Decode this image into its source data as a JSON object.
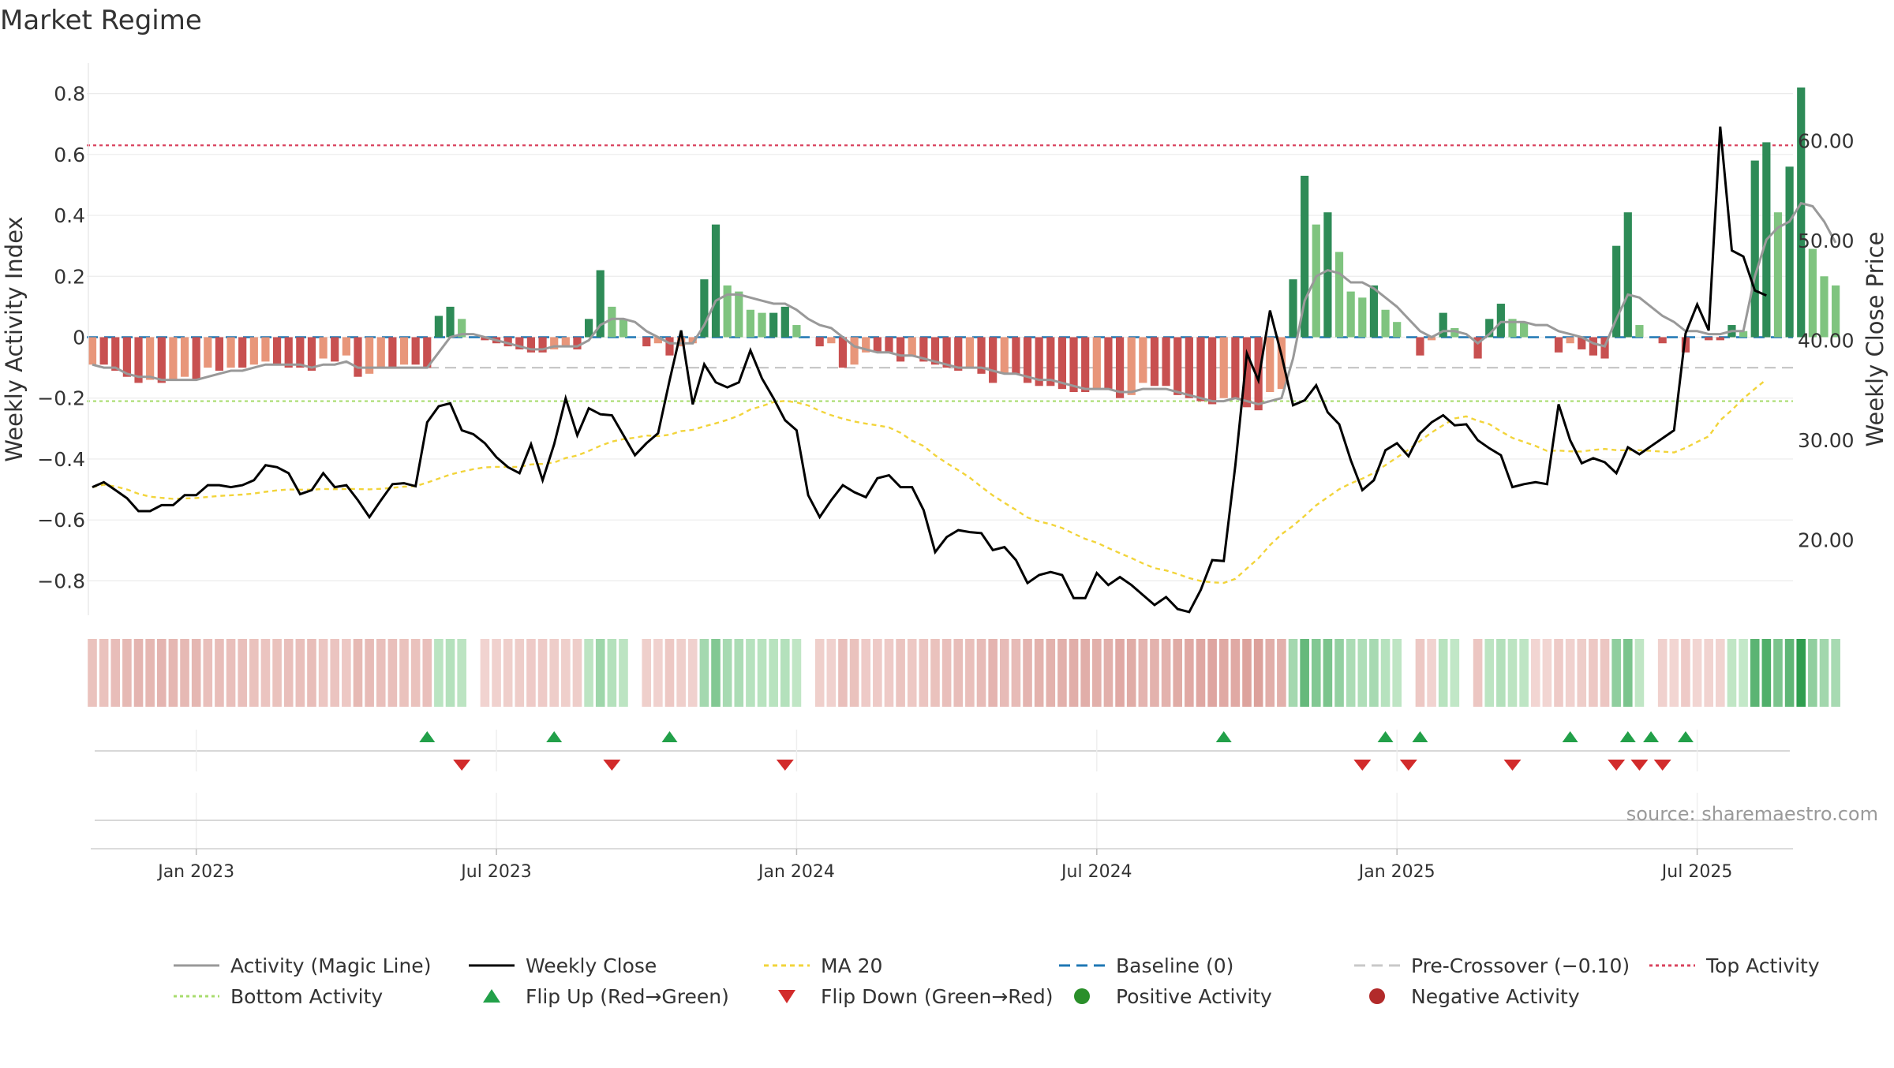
{
  "title": "Market Regime",
  "source_text": "source: sharemaestro.com",
  "colors": {
    "strong_green": "#2e8b57",
    "light_green": "#7fc47f",
    "strong_red": "#c85050",
    "light_red": "#e8967a",
    "magic_line": "#999999",
    "close": "#000000",
    "ma20": "#f2d43a",
    "baseline": "#1f77b4",
    "precross": "#c8c8c8",
    "top": "#d9435e",
    "bottom": "#a8dc6e",
    "flip_up": "#22a049",
    "flip_down": "#d22b2b"
  },
  "legend": [
    {
      "label": "Activity (Magic Line)",
      "kind": "line",
      "color": "#999999",
      "dash": ""
    },
    {
      "label": "Weekly Close",
      "kind": "line",
      "color": "#000000",
      "dash": ""
    },
    {
      "label": "MA 20",
      "kind": "line",
      "color": "#f2d43a",
      "dash": "6,5"
    },
    {
      "label": "Baseline (0)",
      "kind": "line",
      "color": "#1f77b4",
      "dash": "14,8"
    },
    {
      "label": "Pre-Crossover (−0.10)",
      "kind": "line",
      "color": "#c8c8c8",
      "dash": "14,8"
    },
    {
      "label": "Top Activity",
      "kind": "line",
      "color": "#d9435e",
      "dash": "4,4"
    },
    {
      "label": "Bottom Activity",
      "kind": "line",
      "color": "#a8dc6e",
      "dash": "4,4"
    },
    {
      "label": "Flip Up (Red→Green)",
      "kind": "tri-up",
      "color": "#22a049",
      "dash": ""
    },
    {
      "label": "Flip Down (Green→Red)",
      "kind": "tri-down",
      "color": "#d22b2b",
      "dash": ""
    },
    {
      "label": "Positive Activity",
      "kind": "dot",
      "color": "#2a8f2a",
      "dash": ""
    },
    {
      "label": "Negative Activity",
      "kind": "dot",
      "color": "#b22a2a",
      "dash": ""
    }
  ],
  "chart_data": {
    "type": "bar",
    "x_ticks": [
      "Jan 2023",
      "Jul 2023",
      "Jan 2024",
      "Jul 2024",
      "Jan 2025",
      "Jul 2025"
    ],
    "x_tick_weeks": [
      9,
      35,
      61,
      87,
      113,
      139
    ],
    "first_week": "2022-11-07",
    "y_left": {
      "label": "Weekly Activity Index",
      "ticks": [
        "0.8",
        "0.6",
        "0.4",
        "0.2",
        "0",
        "−0.2",
        "−0.4",
        "−0.6",
        "−0.8"
      ],
      "range": [
        -0.9,
        0.9
      ]
    },
    "y_right": {
      "label": "Weekly Close Price",
      "ticks": [
        "60.00",
        "50.00",
        "40.00",
        "30.00",
        "20.00"
      ],
      "range": [
        12.87,
        67.77
      ]
    },
    "reference_lines": {
      "top": 0.63,
      "bottom": -0.21,
      "precross": -0.1,
      "baseline": 0
    },
    "activity": [
      -0.09,
      -0.09,
      -0.11,
      -0.13,
      -0.15,
      -0.14,
      -0.15,
      -0.14,
      -0.13,
      -0.14,
      -0.1,
      -0.11,
      -0.1,
      -0.1,
      -0.09,
      -0.08,
      -0.09,
      -0.1,
      -0.1,
      -0.11,
      -0.07,
      -0.08,
      -0.06,
      -0.13,
      -0.12,
      -0.1,
      -0.1,
      -0.09,
      -0.09,
      -0.1,
      0.07,
      0.1,
      0.06,
      0.0,
      -0.01,
      -0.02,
      -0.03,
      -0.04,
      -0.05,
      -0.05,
      -0.04,
      -0.03,
      -0.04,
      0.06,
      0.22,
      0.1,
      0.06,
      0.0,
      -0.03,
      -0.02,
      -0.06,
      -0.03,
      -0.02,
      0.19,
      0.37,
      0.17,
      0.15,
      0.09,
      0.08,
      0.08,
      0.1,
      0.04,
      0.0,
      -0.03,
      -0.02,
      -0.1,
      -0.09,
      -0.05,
      -0.05,
      -0.05,
      -0.08,
      -0.06,
      -0.08,
      -0.09,
      -0.1,
      -0.11,
      -0.1,
      -0.12,
      -0.15,
      -0.12,
      -0.12,
      -0.15,
      -0.16,
      -0.16,
      -0.17,
      -0.18,
      -0.18,
      -0.17,
      -0.17,
      -0.2,
      -0.19,
      -0.15,
      -0.16,
      -0.16,
      -0.19,
      -0.2,
      -0.21,
      -0.22,
      -0.2,
      -0.2,
      -0.23,
      -0.24,
      -0.18,
      -0.17,
      0.19,
      0.53,
      0.37,
      0.41,
      0.28,
      0.15,
      0.13,
      0.17,
      0.09,
      0.05,
      0.0,
      -0.06,
      -0.01,
      0.08,
      0.03,
      0.0,
      -0.07,
      0.06,
      0.11,
      0.06,
      0.05,
      0.0,
      0.0,
      -0.05,
      -0.02,
      -0.04,
      -0.06,
      -0.07,
      0.3,
      0.41,
      0.04,
      0.0,
      -0.02,
      0.0,
      -0.05,
      0.0,
      -0.01,
      -0.01,
      0.04,
      0.02,
      0.58,
      0.64,
      0.41,
      0.56,
      0.82,
      0.29,
      0.2,
      0.17
    ],
    "magic_line": [
      -0.09,
      -0.1,
      -0.1,
      -0.12,
      -0.13,
      -0.13,
      -0.14,
      -0.14,
      -0.14,
      -0.14,
      -0.13,
      -0.12,
      -0.11,
      -0.11,
      -0.1,
      -0.09,
      -0.09,
      -0.09,
      -0.09,
      -0.1,
      -0.09,
      -0.09,
      -0.08,
      -0.1,
      -0.1,
      -0.1,
      -0.1,
      -0.1,
      -0.1,
      -0.1,
      -0.05,
      0.0,
      0.01,
      0.01,
      0.0,
      -0.01,
      -0.02,
      -0.03,
      -0.04,
      -0.04,
      -0.03,
      -0.03,
      -0.03,
      -0.01,
      0.04,
      0.06,
      0.06,
      0.05,
      0.02,
      0.0,
      -0.02,
      -0.02,
      -0.02,
      0.04,
      0.12,
      0.14,
      0.14,
      0.13,
      0.12,
      0.11,
      0.11,
      0.09,
      0.06,
      0.04,
      0.03,
      0.0,
      -0.03,
      -0.04,
      -0.05,
      -0.05,
      -0.06,
      -0.06,
      -0.07,
      -0.08,
      -0.09,
      -0.1,
      -0.1,
      -0.1,
      -0.11,
      -0.12,
      -0.12,
      -0.13,
      -0.14,
      -0.14,
      -0.15,
      -0.16,
      -0.17,
      -0.17,
      -0.17,
      -0.18,
      -0.18,
      -0.17,
      -0.17,
      -0.17,
      -0.18,
      -0.19,
      -0.2,
      -0.21,
      -0.21,
      -0.2,
      -0.21,
      -0.22,
      -0.21,
      -0.2,
      -0.07,
      0.12,
      0.2,
      0.22,
      0.21,
      0.18,
      0.18,
      0.16,
      0.13,
      0.1,
      0.06,
      0.02,
      0.0,
      0.02,
      0.02,
      0.01,
      -0.02,
      0.01,
      0.05,
      0.05,
      0.05,
      0.04,
      0.04,
      0.02,
      0.01,
      0.0,
      -0.02,
      -0.03,
      0.06,
      0.14,
      0.13,
      0.1,
      0.07,
      0.05,
      0.02,
      0.02,
      0.01,
      0.01,
      0.02,
      0.02,
      0.2,
      0.32,
      0.36,
      0.38,
      0.44,
      0.43,
      0.38,
      0.31
    ],
    "weekly_close": [
      25.3,
      25.8,
      25.0,
      24.2,
      22.9,
      22.9,
      23.5,
      23.5,
      24.5,
      24.5,
      25.5,
      25.5,
      25.3,
      25.5,
      26.0,
      27.5,
      27.3,
      26.7,
      24.6,
      25.0,
      26.7,
      25.3,
      25.5,
      24.0,
      22.3,
      24.0,
      25.6,
      25.7,
      25.4,
      31.8,
      33.4,
      33.7,
      31.0,
      30.6,
      29.7,
      28.3,
      27.3,
      26.7,
      29.6,
      26.0,
      29.6,
      34.2,
      30.5,
      33.2,
      32.6,
      32.5,
      30.5,
      28.5,
      29.7,
      30.7,
      36.0,
      41.0,
      33.6,
      37.6,
      35.8,
      35.3,
      35.8,
      39.0,
      36.2,
      34.2,
      32.0,
      31.0,
      24.5,
      22.3,
      24.0,
      25.5,
      24.8,
      24.3,
      26.2,
      26.5,
      25.3,
      25.3,
      23.0,
      18.8,
      20.3,
      21.0,
      20.8,
      20.7,
      19.0,
      19.3,
      18.0,
      15.7,
      16.5,
      16.8,
      16.5,
      14.2,
      14.2,
      16.7,
      15.5,
      16.3,
      15.5,
      14.5,
      13.5,
      14.3,
      13.1,
      12.8,
      15.0,
      18.0,
      17.9,
      27.5,
      38.7,
      36.0,
      43.0,
      38.5,
      33.5,
      34.0,
      35.5,
      32.8,
      31.6,
      28.0,
      25.0,
      26.0,
      29.0,
      29.7,
      28.4,
      30.7,
      31.8,
      32.5,
      31.5,
      31.6,
      30.0,
      29.2,
      28.5,
      25.3,
      25.6,
      25.8,
      25.6,
      33.6,
      30.0,
      27.7,
      28.2,
      27.8,
      26.7,
      29.3,
      28.6,
      29.4,
      30.2,
      31.0,
      40.7,
      43.6,
      41.0,
      61.4,
      49.0,
      48.4,
      45.0,
      44.5
    ]
  }
}
